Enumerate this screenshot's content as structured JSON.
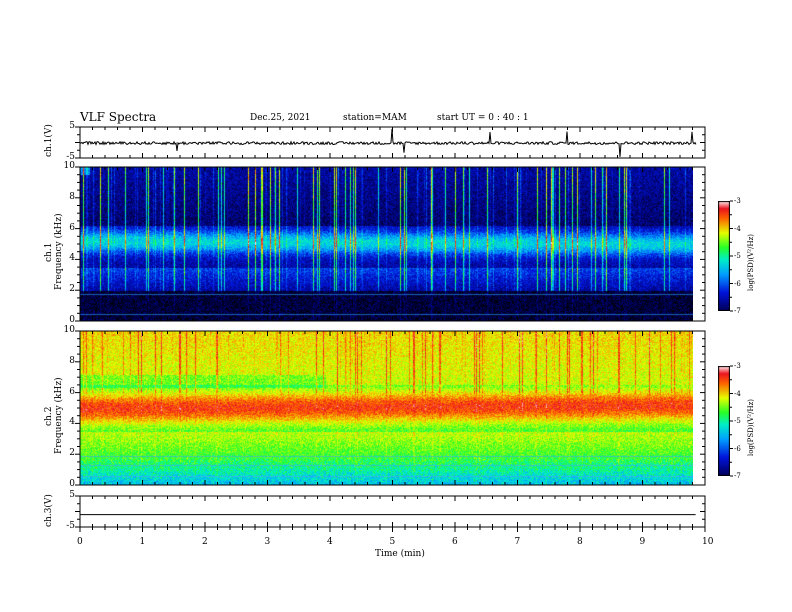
{
  "header": {
    "title": "VLF Spectra",
    "date": "Dec.25, 2021",
    "station": "station=MAM",
    "start": "start UT =  0 : 40 : 1"
  },
  "chart_data": [
    {
      "type": "line",
      "name": "ch1-waveform",
      "ylabel": "ch.1(V)",
      "ylim": [
        -5,
        5
      ],
      "yticks": [
        "5",
        "-5"
      ],
      "description_level": -0.2
    },
    {
      "type": "heatmap",
      "name": "ch1-spectrogram",
      "ylabel_line1": "ch.1",
      "ylabel_line2": "Frequency (kHz)",
      "ylim": [
        0,
        10
      ],
      "yticks": [
        "0",
        "2",
        "4",
        "6",
        "8",
        "10"
      ],
      "colorbar": {
        "label": "log(PSD)(V²/Hz)",
        "range": [
          -7,
          -3
        ],
        "ticks": [
          "-3",
          "-4",
          "-5",
          "-6",
          "-7"
        ]
      },
      "band_center_khz_start": 5.2,
      "band_center_khz_end": 5.0
    },
    {
      "type": "heatmap",
      "name": "ch2-spectrogram",
      "ylabel_line1": "ch.2",
      "ylabel_line2": "Frequency (kHz)",
      "ylim": [
        0,
        10
      ],
      "yticks": [
        "0",
        "2",
        "4",
        "6",
        "8",
        "10"
      ],
      "colorbar": {
        "label": "log(PSD)(V²/Hz)",
        "range": [
          -7,
          -3
        ],
        "ticks": [
          "-3",
          "-4",
          "-5",
          "-6",
          "-7"
        ]
      },
      "band_center_khz_start": 5.0,
      "band_center_khz_end": 5.2
    },
    {
      "type": "line",
      "name": "ch3-waveform",
      "ylabel": "ch.3(V)",
      "ylim": [
        -5,
        5
      ],
      "yticks": [
        "5",
        "-5"
      ],
      "description_level": -1.0
    }
  ],
  "xaxis": {
    "label": "Time (min)",
    "range": [
      0,
      10
    ],
    "data_end": 9.85,
    "ticks": [
      "0",
      "1",
      "2",
      "3",
      "4",
      "5",
      "6",
      "7",
      "8",
      "9",
      "10"
    ]
  }
}
